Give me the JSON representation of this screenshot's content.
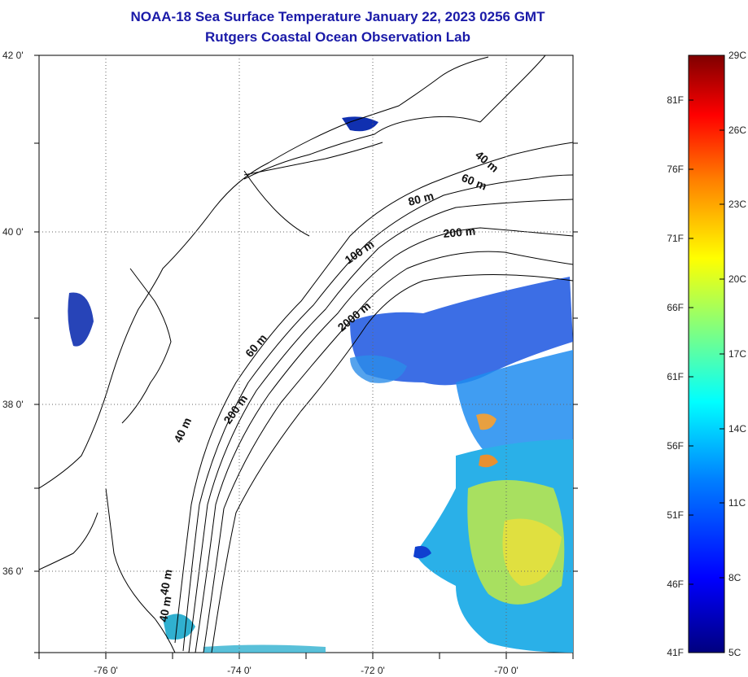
{
  "title": "NOAA-18 Sea Surface Temperature January 22, 2023 0256 GMT",
  "subtitle": "Rutgers Coastal Ocean Observation Lab",
  "lat_ticks": [
    "42 0'",
    "40 0'",
    "38 0'",
    "36 0'"
  ],
  "lon_ticks": [
    "-76 0'",
    "-74 0'",
    "-72 0'",
    "-70 0'"
  ],
  "depth_labels": [
    "40 m",
    "60 m",
    "80 m",
    "200 m",
    "100 m",
    "2000 m",
    "60 m",
    "200 m",
    "40 m",
    "40 m",
    "40 m"
  ],
  "colorbar": {
    "fahrenheit": [
      "81F",
      "76F",
      "71F",
      "66F",
      "61F",
      "56F",
      "51F",
      "46F",
      "41F"
    ],
    "celsius": [
      "29C",
      "26C",
      "23C",
      "20C",
      "17C",
      "14C",
      "11C",
      "8C",
      "5C"
    ],
    "colors": [
      "#00007f",
      "#0000ff",
      "#0080ff",
      "#00ffff",
      "#80ff80",
      "#ffff00",
      "#ff8000",
      "#ff0000",
      "#7f0000"
    ]
  },
  "map_extent": {
    "lon": [
      -77,
      -69
    ],
    "lat": [
      35,
      42
    ]
  }
}
